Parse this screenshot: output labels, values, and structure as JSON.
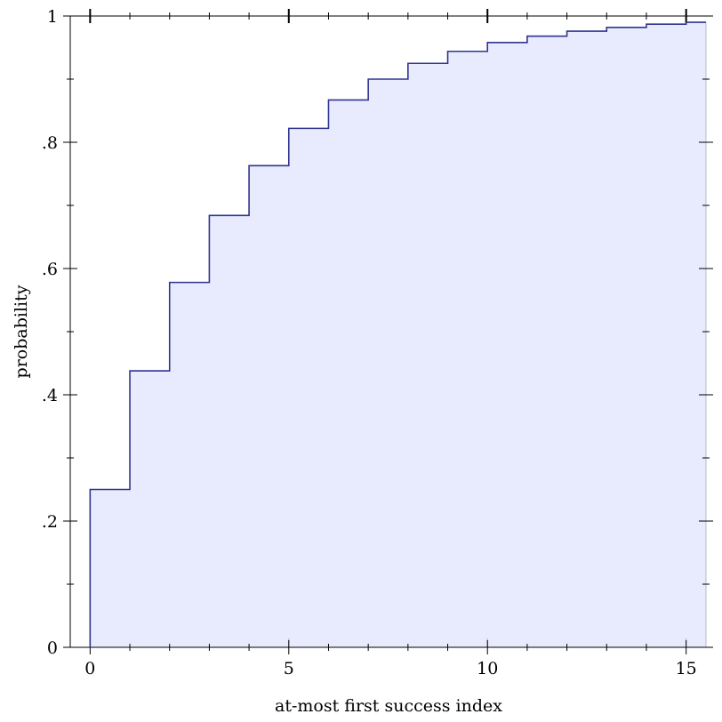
{
  "chart_data": {
    "type": "area",
    "xlabel": "at-most first success index",
    "ylabel": "probability",
    "xlim": [
      -0.5,
      15.5
    ],
    "ylim": [
      0,
      1
    ],
    "x_ticks": [
      0,
      5,
      10,
      15
    ],
    "x_tick_labels": [
      "0",
      "5",
      "10",
      "15"
    ],
    "y_ticks": [
      0,
      0.2,
      0.4,
      0.6,
      0.8,
      1
    ],
    "y_tick_labels": [
      "0",
      ".2",
      ".4",
      ".6",
      ".8",
      "1"
    ],
    "grid": false,
    "series": [
      {
        "type": "step",
        "x": [
          0,
          1,
          2,
          3,
          4,
          5,
          6,
          7,
          8,
          9,
          10,
          11,
          12,
          13,
          14,
          15
        ],
        "values": [
          0.25,
          0.438,
          0.578,
          0.684,
          0.763,
          0.822,
          0.867,
          0.9,
          0.925,
          0.944,
          0.958,
          0.968,
          0.976,
          0.982,
          0.987,
          0.99
        ]
      }
    ],
    "colors": {
      "line": "#2f3490",
      "fill": "#e8ebfd",
      "axis": "#000000"
    }
  }
}
